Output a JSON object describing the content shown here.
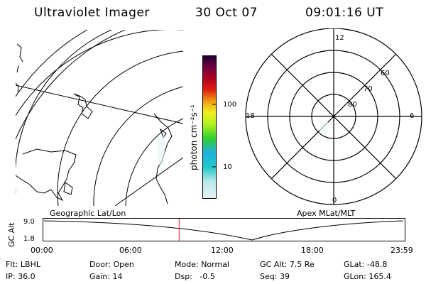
{
  "header": {
    "instrument": "Ultraviolet Imager",
    "date": "30 Oct 07",
    "time": "09:01:16 UT"
  },
  "colorbar": {
    "unit_label": "photon cm⁻²s⁻¹",
    "ticks": [
      "100",
      "10"
    ]
  },
  "geo_panel": {
    "caption": "Geographic Lat/Lon"
  },
  "polar_panel": {
    "caption": "Apex MLat/MLT",
    "mlt_labels": {
      "top": "12",
      "right": "6",
      "bottom": "0",
      "left": "18"
    },
    "lat_labels": [
      "60",
      "70",
      "80"
    ]
  },
  "timeline": {
    "ylabel": "GC Alt",
    "yticks": [
      "9.0",
      "1.8"
    ],
    "xticks": [
      "00:00",
      "06:00",
      "12:00",
      "18:00",
      "23:59"
    ],
    "current_time_hours": 9.02
  },
  "status": {
    "row1": [
      {
        "label": "Flt:",
        "value": "LBHL"
      },
      {
        "label": "Door:",
        "value": "Open"
      },
      {
        "label": "Mode:",
        "value": "Normal"
      },
      {
        "label": "GC Alt:",
        "value": "7.5 Re"
      },
      {
        "label": "GLat:",
        "value": "-48.8"
      }
    ],
    "row2": [
      {
        "label": "IP:",
        "value": "36.0"
      },
      {
        "label": "Gain:",
        "value": "14"
      },
      {
        "label": "Dsp:",
        "value": "-0.5"
      },
      {
        "label": "Seq:",
        "value": "39"
      },
      {
        "label": "GLon:",
        "value": "165.4"
      }
    ]
  }
}
